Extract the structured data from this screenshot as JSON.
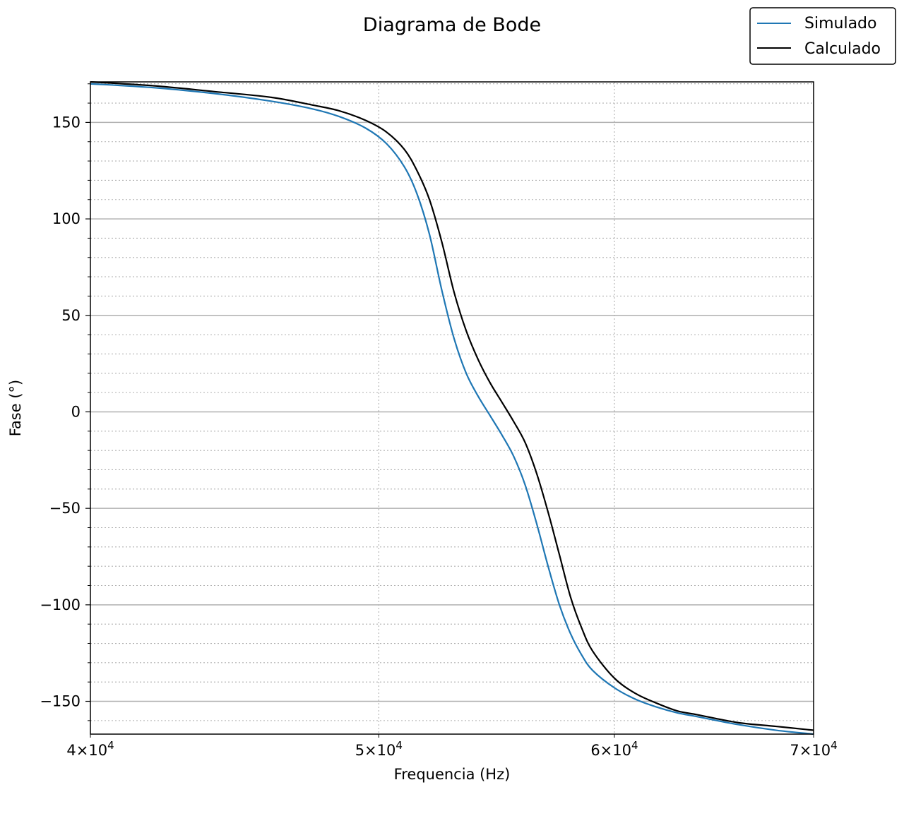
{
  "chart_data": {
    "type": "line",
    "title": "Diagrama de Bode",
    "xlabel": "Frequencia (Hz)",
    "ylabel": "Fase (°)",
    "xscale": "log",
    "xlim": [
      40000,
      70000
    ],
    "ylim": [
      -167,
      171
    ],
    "grid": {
      "major": true,
      "minor": true
    },
    "legend": {
      "position": "top-right"
    },
    "x_ticks": [
      {
        "value": 40000,
        "mantissa": "4",
        "base": "10",
        "exp": "4"
      },
      {
        "value": 50000,
        "mantissa": "5",
        "base": "10",
        "exp": "4"
      },
      {
        "value": 60000,
        "mantissa": "6",
        "base": "10",
        "exp": "4"
      },
      {
        "value": 70000,
        "mantissa": "7",
        "base": "10",
        "exp": "4"
      }
    ],
    "y_ticks": [
      {
        "value": 150,
        "label": "150"
      },
      {
        "value": 100,
        "label": "100"
      },
      {
        "value": 50,
        "label": "50"
      },
      {
        "value": 0,
        "label": "0"
      },
      {
        "value": -50,
        "label": "−50"
      },
      {
        "value": -100,
        "label": "−100"
      },
      {
        "value": -150,
        "label": "−150"
      }
    ],
    "series": [
      {
        "name": "Simulado",
        "color": "#1f77b4",
        "points": [
          [
            40000,
            170
          ],
          [
            42000,
            168
          ],
          [
            44000,
            165
          ],
          [
            46000,
            161
          ],
          [
            47500,
            157
          ],
          [
            48500,
            153
          ],
          [
            49500,
            147
          ],
          [
            50300,
            139
          ],
          [
            51000,
            127
          ],
          [
            51500,
            113
          ],
          [
            52000,
            92
          ],
          [
            52500,
            63
          ],
          [
            53000,
            38
          ],
          [
            53500,
            20
          ],
          [
            54000,
            8
          ],
          [
            54500,
            -2
          ],
          [
            55000,
            -12
          ],
          [
            55500,
            -23
          ],
          [
            56000,
            -38
          ],
          [
            56500,
            -58
          ],
          [
            57000,
            -80
          ],
          [
            57500,
            -100
          ],
          [
            58000,
            -115
          ],
          [
            58500,
            -126
          ],
          [
            59000,
            -134
          ],
          [
            60000,
            -143
          ],
          [
            61000,
            -149
          ],
          [
            62000,
            -153
          ],
          [
            63000,
            -156
          ],
          [
            64000,
            -158
          ],
          [
            66000,
            -162
          ],
          [
            68000,
            -165
          ],
          [
            70000,
            -167
          ]
        ]
      },
      {
        "name": "Calculado",
        "color": "#000000",
        "points": [
          [
            40000,
            171
          ],
          [
            42000,
            169
          ],
          [
            44000,
            166
          ],
          [
            46000,
            163
          ],
          [
            47500,
            159
          ],
          [
            48500,
            156
          ],
          [
            49500,
            151
          ],
          [
            50300,
            145
          ],
          [
            51000,
            136
          ],
          [
            51500,
            125
          ],
          [
            52000,
            110
          ],
          [
            52500,
            88
          ],
          [
            53000,
            62
          ],
          [
            53500,
            42
          ],
          [
            54000,
            27
          ],
          [
            54500,
            15
          ],
          [
            55000,
            5
          ],
          [
            55500,
            -5
          ],
          [
            56000,
            -16
          ],
          [
            56500,
            -32
          ],
          [
            57000,
            -52
          ],
          [
            57500,
            -74
          ],
          [
            58000,
            -96
          ],
          [
            58500,
            -112
          ],
          [
            59000,
            -124
          ],
          [
            60000,
            -138
          ],
          [
            61000,
            -146
          ],
          [
            62000,
            -151
          ],
          [
            63000,
            -155
          ],
          [
            64000,
            -157
          ],
          [
            66000,
            -161
          ],
          [
            68000,
            -163
          ],
          [
            70000,
            -165
          ]
        ]
      }
    ]
  }
}
